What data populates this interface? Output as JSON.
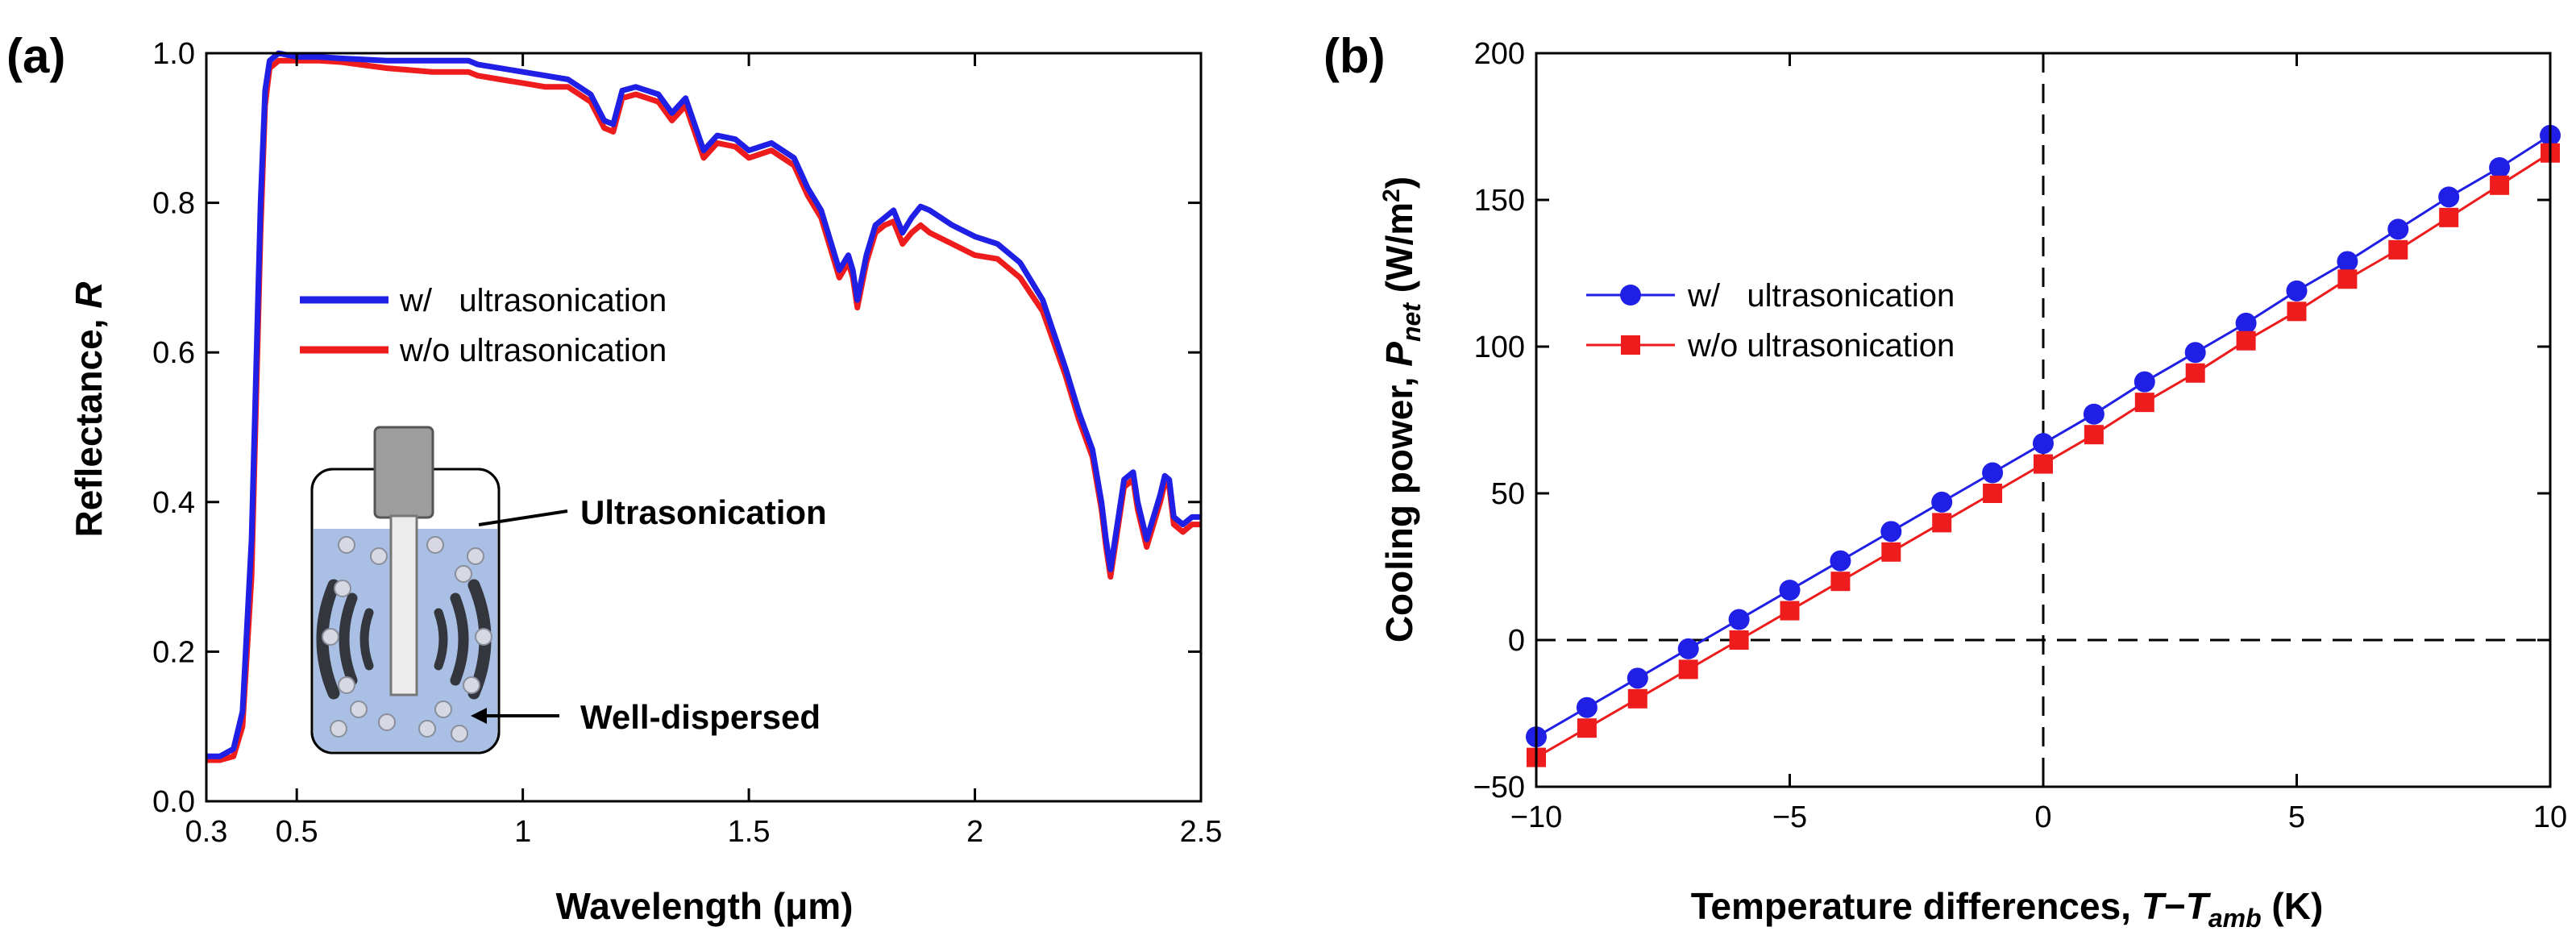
{
  "chart_data": [
    {
      "panel": "(a)",
      "type": "line",
      "title": "",
      "xlabel": "Wavelength (μm)",
      "ylabel_main": "Reflectance, ",
      "ylabel_italic": "R",
      "xlim": [
        0.3,
        2.5
      ],
      "ylim": [
        0.0,
        1.0
      ],
      "grid": false,
      "xticks": [
        {
          "value": 0.3,
          "label": "0.3"
        },
        {
          "value": 0.5,
          "label": "0.5"
        },
        {
          "value": 1.0,
          "label": "1"
        },
        {
          "value": 1.5,
          "label": "1.5"
        },
        {
          "value": 2.0,
          "label": "2"
        },
        {
          "value": 2.5,
          "label": "2.5"
        }
      ],
      "yticks": [
        {
          "value": 0.0,
          "label": "0.0"
        },
        {
          "value": 0.2,
          "label": "0.2"
        },
        {
          "value": 0.4,
          "label": "0.4"
        },
        {
          "value": 0.6,
          "label": "0.6"
        },
        {
          "value": 0.8,
          "label": "0.8"
        },
        {
          "value": 1.0,
          "label": "1.0"
        }
      ],
      "legend_position": "center-left",
      "series": [
        {
          "name": "w/   ultrasonication",
          "color": "#1f1fe6",
          "x": [
            0.3,
            0.33,
            0.36,
            0.38,
            0.4,
            0.42,
            0.43,
            0.44,
            0.46,
            0.5,
            0.55,
            0.6,
            0.7,
            0.8,
            0.85,
            0.88,
            0.9,
            0.95,
            1.0,
            1.05,
            1.1,
            1.15,
            1.18,
            1.2,
            1.22,
            1.25,
            1.3,
            1.33,
            1.36,
            1.4,
            1.43,
            1.47,
            1.5,
            1.55,
            1.6,
            1.63,
            1.66,
            1.68,
            1.7,
            1.71,
            1.72,
            1.73,
            1.74,
            1.76,
            1.78,
            1.8,
            1.82,
            1.84,
            1.86,
            1.88,
            1.9,
            1.95,
            2.0,
            2.05,
            2.1,
            2.15,
            2.2,
            2.23,
            2.26,
            2.28,
            2.29,
            2.3,
            2.31,
            2.33,
            2.35,
            2.36,
            2.38,
            2.4,
            2.41,
            2.42,
            2.43,
            2.44,
            2.46,
            2.48,
            2.5
          ],
          "y": [
            0.06,
            0.06,
            0.07,
            0.12,
            0.35,
            0.8,
            0.95,
            0.99,
            1.0,
            0.995,
            0.995,
            0.993,
            0.99,
            0.99,
            0.99,
            0.99,
            0.985,
            0.98,
            0.975,
            0.97,
            0.965,
            0.945,
            0.91,
            0.905,
            0.95,
            0.955,
            0.945,
            0.92,
            0.94,
            0.87,
            0.89,
            0.885,
            0.87,
            0.88,
            0.86,
            0.82,
            0.79,
            0.75,
            0.71,
            0.72,
            0.73,
            0.71,
            0.67,
            0.73,
            0.77,
            0.78,
            0.79,
            0.76,
            0.78,
            0.795,
            0.79,
            0.77,
            0.755,
            0.745,
            0.72,
            0.67,
            0.58,
            0.52,
            0.47,
            0.4,
            0.35,
            0.31,
            0.35,
            0.43,
            0.44,
            0.4,
            0.35,
            0.39,
            0.41,
            0.435,
            0.43,
            0.38,
            0.37,
            0.38,
            0.38
          ]
        },
        {
          "name": "w/o ultrasonication",
          "color": "#ee1c1c",
          "x": [
            0.3,
            0.33,
            0.36,
            0.38,
            0.4,
            0.42,
            0.43,
            0.44,
            0.46,
            0.5,
            0.55,
            0.6,
            0.7,
            0.8,
            0.85,
            0.88,
            0.9,
            0.95,
            1.0,
            1.05,
            1.1,
            1.15,
            1.18,
            1.2,
            1.22,
            1.25,
            1.3,
            1.33,
            1.36,
            1.4,
            1.43,
            1.47,
            1.5,
            1.55,
            1.6,
            1.63,
            1.66,
            1.68,
            1.7,
            1.71,
            1.72,
            1.73,
            1.74,
            1.76,
            1.78,
            1.8,
            1.82,
            1.84,
            1.86,
            1.88,
            1.9,
            1.95,
            2.0,
            2.05,
            2.1,
            2.15,
            2.2,
            2.23,
            2.26,
            2.28,
            2.29,
            2.3,
            2.31,
            2.33,
            2.35,
            2.36,
            2.38,
            2.4,
            2.41,
            2.42,
            2.43,
            2.44,
            2.46,
            2.48,
            2.5
          ],
          "y": [
            0.055,
            0.055,
            0.06,
            0.1,
            0.3,
            0.76,
            0.93,
            0.98,
            0.99,
            0.99,
            0.99,
            0.988,
            0.98,
            0.975,
            0.975,
            0.975,
            0.97,
            0.965,
            0.96,
            0.955,
            0.955,
            0.935,
            0.9,
            0.895,
            0.94,
            0.945,
            0.935,
            0.91,
            0.93,
            0.86,
            0.88,
            0.875,
            0.86,
            0.87,
            0.85,
            0.81,
            0.78,
            0.74,
            0.7,
            0.71,
            0.72,
            0.7,
            0.66,
            0.72,
            0.76,
            0.77,
            0.775,
            0.745,
            0.76,
            0.77,
            0.76,
            0.745,
            0.73,
            0.725,
            0.7,
            0.655,
            0.57,
            0.51,
            0.46,
            0.39,
            0.34,
            0.3,
            0.34,
            0.42,
            0.43,
            0.39,
            0.34,
            0.38,
            0.4,
            0.425,
            0.42,
            0.37,
            0.36,
            0.37,
            0.37
          ]
        }
      ],
      "annotations": [
        "Ultrasonication",
        "Well-dispersed"
      ]
    },
    {
      "panel": "(b)",
      "type": "line",
      "title": "",
      "xlabel_main": "Temperature differences, ",
      "xlabel_T": "T",
      "xlabel_minus": "−",
      "xlabel_T2": "T",
      "xlabel_sub": "amb",
      "xlabel_unit": " (K)",
      "ylabel_main": "Cooling power, ",
      "ylabel_P": "P",
      "ylabel_sub": "net",
      "ylabel_unit": " (W/m",
      "ylabel_sup": "2",
      "ylabel_close": ")",
      "xlim": [
        -10,
        10
      ],
      "ylim": [
        -50,
        200
      ],
      "grid": false,
      "xticks": [
        {
          "value": -10,
          "label": "−10"
        },
        {
          "value": -5,
          "label": "−5"
        },
        {
          "value": 0,
          "label": "0"
        },
        {
          "value": 5,
          "label": "5"
        },
        {
          "value": 10,
          "label": "10"
        }
      ],
      "yticks": [
        {
          "value": -50,
          "label": "−50"
        },
        {
          "value": 0,
          "label": "0"
        },
        {
          "value": 50,
          "label": "50"
        },
        {
          "value": 100,
          "label": "100"
        },
        {
          "value": 150,
          "label": "150"
        },
        {
          "value": 200,
          "label": "200"
        }
      ],
      "reference_lines": [
        {
          "orientation": "horizontal",
          "value": 0,
          "style": "dashed"
        },
        {
          "orientation": "vertical",
          "value": 0,
          "style": "dashed"
        }
      ],
      "legend_position": "center-left",
      "series": [
        {
          "name": "w/   ultrasonication",
          "color": "#1f1fe6",
          "marker": "circle",
          "x": [
            -10,
            -9,
            -8,
            -7,
            -6,
            -5,
            -4,
            -3,
            -2,
            -1,
            0,
            1,
            2,
            3,
            4,
            5,
            6,
            7,
            8,
            9,
            10
          ],
          "y": [
            -33,
            -23,
            -13,
            -3,
            7,
            17,
            27,
            37,
            47,
            57,
            67,
            77,
            88,
            98,
            108,
            119,
            129,
            140,
            151,
            161,
            172
          ]
        },
        {
          "name": "w/o ultrasonication",
          "color": "#ee1c1c",
          "marker": "square",
          "x": [
            -10,
            -9,
            -8,
            -7,
            -6,
            -5,
            -4,
            -3,
            -2,
            -1,
            0,
            1,
            2,
            3,
            4,
            5,
            6,
            7,
            8,
            9,
            10
          ],
          "y": [
            -40,
            -30,
            -20,
            -10,
            0,
            10,
            20,
            30,
            40,
            50,
            60,
            70,
            81,
            91,
            102,
            112,
            123,
            133,
            144,
            155,
            166
          ]
        }
      ]
    }
  ]
}
